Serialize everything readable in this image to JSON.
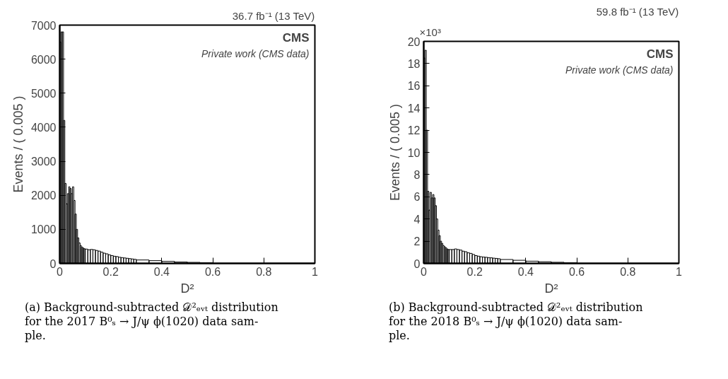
{
  "chart_data": [
    {
      "type": "histogram",
      "title": "36.7 fb⁻¹ (13 TeV)",
      "xlabel": "D²",
      "ylabel": "Events / ( 0.005 )",
      "color": "#000000",
      "grid": false,
      "annotations": [
        "CMS",
        "Private work (CMS data)",
        "(a) Background-subtracted 𝒟²ₑᵥₜ distribution\nfor the 2017 B⁰ₛ → J/ψ ϕ(1020) data sam-\nple."
      ],
      "bins": [
        0,
        0.005,
        0.01,
        0.015,
        0.02,
        0.025,
        0.03,
        0.035,
        0.04,
        0.045,
        0.05,
        0.055,
        0.06,
        0.065,
        0.07,
        0.075,
        0.08,
        0.085,
        0.09,
        0.095,
        0.1,
        0.11,
        0.12,
        0.13,
        0.14,
        0.15,
        0.16,
        0.17,
        0.18,
        0.19,
        0.2,
        0.21,
        0.22,
        0.23,
        0.24,
        0.25,
        0.26,
        0.27,
        0.28,
        0.29,
        0.3,
        0.35,
        0.4,
        0.45,
        0.5,
        0.55,
        0.6,
        1.0
      ],
      "values": [
        6500,
        6800,
        6800,
        4200,
        2350,
        1750,
        2050,
        2250,
        2200,
        2050,
        2250,
        1850,
        1450,
        1000,
        750,
        600,
        520,
        480,
        450,
        430,
        420,
        400,
        410,
        400,
        380,
        360,
        330,
        300,
        280,
        250,
        230,
        210,
        200,
        180,
        170,
        160,
        150,
        140,
        130,
        120,
        100,
        80,
        60,
        40,
        30,
        20,
        5
      ],
      "xlim": [
        0,
        1
      ],
      "ylim": [
        0,
        7000
      ],
      "xticks": [
        0,
        0.2,
        0.4,
        0.6,
        0.8,
        1
      ],
      "yticks": [
        0,
        1000,
        2000,
        3000,
        4000,
        5000,
        6000,
        7000
      ]
    },
    {
      "type": "histogram",
      "title": "59.8 fb⁻¹ (13 TeV)",
      "xlabel": "D²",
      "ylabel": "Events / ( 0.005 )",
      "color": "#000000",
      "grid": false,
      "annotations": [
        "CMS",
        "Private work (CMS data)",
        "×10³",
        "(b) Background-subtracted 𝒟²ₑᵥₜ distribution\nfor the 2018 B⁰ₛ → J/ψ ϕ(1020) data sam-\nple."
      ],
      "bins": [
        0,
        0.005,
        0.01,
        0.015,
        0.02,
        0.025,
        0.03,
        0.035,
        0.04,
        0.045,
        0.05,
        0.055,
        0.06,
        0.065,
        0.07,
        0.075,
        0.08,
        0.085,
        0.09,
        0.095,
        0.1,
        0.11,
        0.12,
        0.13,
        0.14,
        0.15,
        0.16,
        0.17,
        0.18,
        0.19,
        0.2,
        0.21,
        0.22,
        0.23,
        0.24,
        0.25,
        0.26,
        0.27,
        0.28,
        0.29,
        0.3,
        0.35,
        0.4,
        0.45,
        0.5,
        0.55,
        0.6,
        1.0
      ],
      "values": [
        18.5,
        19.2,
        12,
        6.5,
        4.8,
        6.4,
        5.9,
        6.2,
        5.9,
        5.2,
        4,
        3,
        2.5,
        2,
        1.8,
        1.6,
        1.5,
        1.4,
        1.3,
        1.25,
        1.25,
        1.25,
        1.3,
        1.25,
        1.2,
        1.1,
        1.05,
        0.95,
        0.9,
        0.8,
        0.7,
        0.65,
        0.6,
        0.57,
        0.55,
        0.52,
        0.5,
        0.47,
        0.45,
        0.42,
        0.35,
        0.28,
        0.2,
        0.15,
        0.1,
        0.06,
        0.01
      ],
      "xlim": [
        0,
        1
      ],
      "ylim": [
        0,
        20
      ],
      "xticks": [
        0,
        0.2,
        0.4,
        0.6,
        0.8,
        1
      ],
      "yticks": [
        0,
        2,
        4,
        6,
        8,
        10,
        12,
        14,
        16,
        18,
        20
      ]
    }
  ]
}
